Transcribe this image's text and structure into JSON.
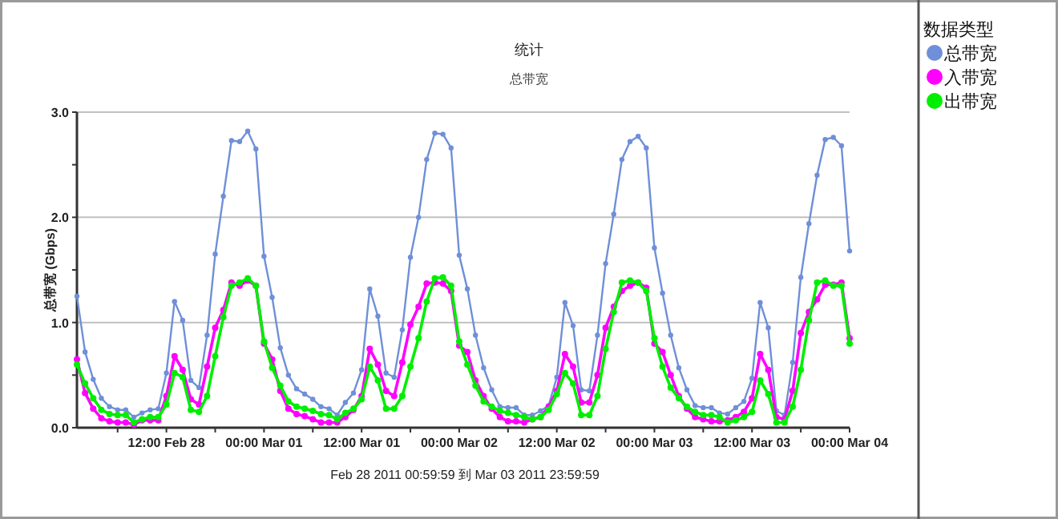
{
  "chart_data": {
    "type": "line",
    "title": "统计",
    "subtitle": "总带宽",
    "ylabel": "总带宽 (Gbps)",
    "legend_title": "数据类型",
    "legend": "right",
    "grid": "y",
    "marker": "circle",
    "line_style": "solid",
    "annotations": [
      "Feb 28 2011  00:59:59 到 Mar 03 2011  23:59:59"
    ],
    "xlim": [
      "2011-02-28T01:00",
      "2011-03-04T00:00"
    ],
    "xticks": [
      {
        "value": "2011-02-28T06:00",
        "label": null
      },
      {
        "value": "2011-02-28T12:00",
        "label": "12:00 Feb 28"
      },
      {
        "value": "2011-02-28T18:00",
        "label": null
      },
      {
        "value": "2011-03-01T00:00",
        "label": "00:00 Mar 01"
      },
      {
        "value": "2011-03-01T06:00",
        "label": null
      },
      {
        "value": "2011-03-01T12:00",
        "label": "12:00 Mar 01"
      },
      {
        "value": "2011-03-01T18:00",
        "label": null
      },
      {
        "value": "2011-03-02T00:00",
        "label": "00:00 Mar 02"
      },
      {
        "value": "2011-03-02T06:00",
        "label": null
      },
      {
        "value": "2011-03-02T12:00",
        "label": "12:00 Mar 02"
      },
      {
        "value": "2011-03-02T18:00",
        "label": null
      },
      {
        "value": "2011-03-03T00:00",
        "label": "00:00 Mar 03"
      },
      {
        "value": "2011-03-03T06:00",
        "label": null
      },
      {
        "value": "2011-03-03T12:00",
        "label": "12:00 Mar 03"
      },
      {
        "value": "2011-03-03T18:00",
        "label": null
      },
      {
        "value": "2011-03-04T00:00",
        "label": "00:00 Mar 04"
      }
    ],
    "ylim": [
      0,
      3
    ],
    "yticks": [
      {
        "value": 0,
        "label": "0.0"
      },
      {
        "value": 0.5,
        "label": null
      },
      {
        "value": 1,
        "label": "1.0"
      },
      {
        "value": 1.5,
        "label": null
      },
      {
        "value": 2,
        "label": "2.0"
      },
      {
        "value": 2.5,
        "label": null
      },
      {
        "value": 3,
        "label": "3.0"
      }
    ],
    "x": [
      "2011-02-28T01:00",
      "2011-02-28T02:00",
      "2011-02-28T03:00",
      "2011-02-28T04:00",
      "2011-02-28T05:00",
      "2011-02-28T06:00",
      "2011-02-28T07:00",
      "2011-02-28T08:00",
      "2011-02-28T09:00",
      "2011-02-28T10:00",
      "2011-02-28T11:00",
      "2011-02-28T12:00",
      "2011-02-28T13:00",
      "2011-02-28T14:00",
      "2011-02-28T15:00",
      "2011-02-28T16:00",
      "2011-02-28T17:00",
      "2011-02-28T18:00",
      "2011-02-28T19:00",
      "2011-02-28T20:00",
      "2011-02-28T21:00",
      "2011-02-28T22:00",
      "2011-02-28T23:00",
      "2011-03-01T00:00",
      "2011-03-01T01:00",
      "2011-03-01T02:00",
      "2011-03-01T03:00",
      "2011-03-01T04:00",
      "2011-03-01T05:00",
      "2011-03-01T06:00",
      "2011-03-01T07:00",
      "2011-03-01T08:00",
      "2011-03-01T09:00",
      "2011-03-01T10:00",
      "2011-03-01T11:00",
      "2011-03-01T12:00",
      "2011-03-01T13:00",
      "2011-03-01T14:00",
      "2011-03-01T15:00",
      "2011-03-01T16:00",
      "2011-03-01T17:00",
      "2011-03-01T18:00",
      "2011-03-01T19:00",
      "2011-03-01T20:00",
      "2011-03-01T21:00",
      "2011-03-01T22:00",
      "2011-03-01T23:00",
      "2011-03-02T00:00",
      "2011-03-02T01:00",
      "2011-03-02T02:00",
      "2011-03-02T03:00",
      "2011-03-02T04:00",
      "2011-03-02T05:00",
      "2011-03-02T06:00",
      "2011-03-02T07:00",
      "2011-03-02T08:00",
      "2011-03-02T09:00",
      "2011-03-02T10:00",
      "2011-03-02T11:00",
      "2011-03-02T12:00",
      "2011-03-02T13:00",
      "2011-03-02T14:00",
      "2011-03-02T15:00",
      "2011-03-02T16:00",
      "2011-03-02T17:00",
      "2011-03-02T18:00",
      "2011-03-02T19:00",
      "2011-03-02T20:00",
      "2011-03-02T21:00",
      "2011-03-02T22:00",
      "2011-03-02T23:00",
      "2011-03-03T00:00",
      "2011-03-03T01:00",
      "2011-03-03T02:00",
      "2011-03-03T03:00",
      "2011-03-03T04:00",
      "2011-03-03T05:00",
      "2011-03-03T06:00",
      "2011-03-03T07:00",
      "2011-03-03T08:00",
      "2011-03-03T09:00",
      "2011-03-03T10:00",
      "2011-03-03T11:00",
      "2011-03-03T12:00",
      "2011-03-03T13:00",
      "2011-03-03T14:00",
      "2011-03-03T15:00",
      "2011-03-03T16:00",
      "2011-03-03T17:00",
      "2011-03-03T18:00",
      "2011-03-03T19:00",
      "2011-03-03T20:00",
      "2011-03-03T21:00",
      "2011-03-03T22:00",
      "2011-03-03T23:00",
      "2011-03-04T00:00"
    ],
    "series": [
      {
        "name": "总带宽",
        "color": "#6f8fd8",
        "values": [
          1.25,
          0.72,
          0.46,
          0.28,
          0.2,
          0.17,
          0.17,
          0.1,
          0.14,
          0.17,
          0.18,
          0.52,
          1.2,
          1.02,
          0.45,
          0.38,
          0.88,
          1.65,
          2.2,
          2.73,
          2.72,
          2.82,
          2.65,
          1.63,
          1.24,
          0.76,
          0.5,
          0.37,
          0.32,
          0.27,
          0.2,
          0.18,
          0.12,
          0.24,
          0.33,
          0.55,
          1.32,
          1.06,
          0.52,
          0.48,
          0.93,
          1.62,
          2.0,
          2.55,
          2.8,
          2.79,
          2.66,
          1.64,
          1.32,
          0.88,
          0.57,
          0.36,
          0.2,
          0.19,
          0.19,
          0.12,
          0.12,
          0.16,
          0.21,
          0.48,
          1.19,
          0.97,
          0.36,
          0.35,
          0.88,
          1.56,
          2.03,
          2.55,
          2.72,
          2.77,
          2.66,
          1.71,
          1.28,
          0.88,
          0.57,
          0.36,
          0.21,
          0.19,
          0.19,
          0.14,
          0.13,
          0.19,
          0.25,
          0.47,
          1.19,
          0.95,
          0.16,
          0.12,
          0.62,
          1.43,
          1.94,
          2.4,
          2.74,
          2.76,
          2.68,
          1.68
        ]
      },
      {
        "name": "入带宽",
        "color": "#ff00ff",
        "values": [
          0.65,
          0.33,
          0.18,
          0.09,
          0.06,
          0.05,
          0.05,
          0.03,
          0.07,
          0.07,
          0.07,
          0.3,
          0.68,
          0.55,
          0.27,
          0.22,
          0.58,
          0.95,
          1.12,
          1.38,
          1.35,
          1.4,
          1.35,
          0.8,
          0.65,
          0.35,
          0.18,
          0.13,
          0.11,
          0.08,
          0.05,
          0.05,
          0.05,
          0.1,
          0.17,
          0.3,
          0.75,
          0.6,
          0.35,
          0.3,
          0.62,
          0.98,
          1.15,
          1.37,
          1.38,
          1.37,
          1.3,
          0.78,
          0.72,
          0.45,
          0.3,
          0.18,
          0.1,
          0.06,
          0.06,
          0.05,
          0.08,
          0.1,
          0.2,
          0.35,
          0.7,
          0.58,
          0.24,
          0.24,
          0.5,
          0.95,
          1.15,
          1.3,
          1.35,
          1.38,
          1.33,
          0.8,
          0.72,
          0.5,
          0.3,
          0.18,
          0.1,
          0.08,
          0.06,
          0.06,
          0.07,
          0.1,
          0.15,
          0.28,
          0.7,
          0.55,
          0.1,
          0.08,
          0.35,
          0.9,
          1.1,
          1.22,
          1.36,
          1.36,
          1.38,
          0.85
        ]
      },
      {
        "name": "出带宽",
        "color": "#00ee00",
        "values": [
          0.6,
          0.42,
          0.28,
          0.17,
          0.13,
          0.12,
          0.12,
          0.05,
          0.08,
          0.1,
          0.1,
          0.22,
          0.52,
          0.48,
          0.17,
          0.15,
          0.3,
          0.68,
          1.05,
          1.35,
          1.38,
          1.42,
          1.35,
          0.82,
          0.57,
          0.4,
          0.25,
          0.2,
          0.18,
          0.16,
          0.13,
          0.12,
          0.08,
          0.14,
          0.18,
          0.27,
          0.58,
          0.45,
          0.18,
          0.18,
          0.3,
          0.58,
          0.85,
          1.2,
          1.42,
          1.43,
          1.35,
          0.82,
          0.6,
          0.4,
          0.25,
          0.2,
          0.16,
          0.14,
          0.12,
          0.1,
          0.08,
          0.1,
          0.17,
          0.32,
          0.52,
          0.42,
          0.12,
          0.12,
          0.3,
          0.75,
          1.1,
          1.38,
          1.4,
          1.38,
          1.3,
          0.85,
          0.58,
          0.38,
          0.28,
          0.2,
          0.15,
          0.12,
          0.12,
          0.1,
          0.05,
          0.07,
          0.1,
          0.15,
          0.45,
          0.32,
          0.05,
          0.05,
          0.2,
          0.55,
          1.02,
          1.38,
          1.4,
          1.35,
          1.35,
          0.8
        ]
      }
    ]
  }
}
